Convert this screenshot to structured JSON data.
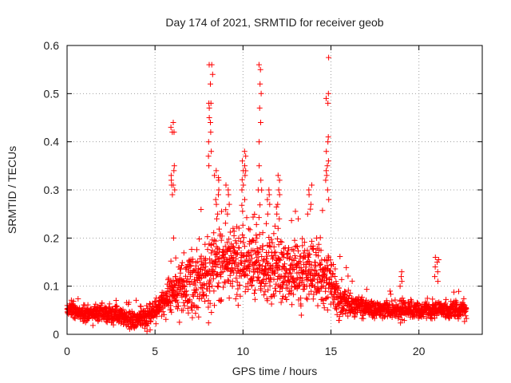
{
  "chart_data": {
    "type": "scatter",
    "title": "Day 174 of 2021, SRMTID for receiver geob",
    "xlabel": "GPS time / hours",
    "ylabel": "SRMTID / TECUs",
    "xlim": [
      0,
      23.6
    ],
    "ylim": [
      0,
      0.6
    ],
    "xticks": [
      0,
      5,
      10,
      15,
      20
    ],
    "yticks": [
      0,
      0.1,
      0.2,
      0.3,
      0.4,
      0.5,
      0.6
    ],
    "ytick_labels": [
      "0",
      "0.1",
      "0.2",
      "0.3",
      "0.4",
      "0.5",
      "0.6"
    ],
    "grid": true,
    "marker": "+",
    "color": "#ff0000",
    "time_range": [
      0,
      22.7
    ],
    "profile": [
      [
        0.0,
        0.055
      ],
      [
        1.0,
        0.04
      ],
      [
        2.0,
        0.045
      ],
      [
        3.0,
        0.04
      ],
      [
        3.8,
        0.03
      ],
      [
        4.5,
        0.035
      ],
      [
        5.0,
        0.05
      ],
      [
        5.5,
        0.07
      ],
      [
        6.0,
        0.09
      ],
      [
        7.0,
        0.1
      ],
      [
        8.0,
        0.13
      ],
      [
        9.0,
        0.16
      ],
      [
        10.0,
        0.15
      ],
      [
        11.0,
        0.14
      ],
      [
        12.0,
        0.13
      ],
      [
        13.0,
        0.12
      ],
      [
        14.0,
        0.13
      ],
      [
        15.0,
        0.11
      ],
      [
        15.5,
        0.07
      ],
      [
        16.5,
        0.06
      ],
      [
        18.0,
        0.05
      ],
      [
        20.0,
        0.05
      ],
      [
        22.7,
        0.05
      ]
    ],
    "spread_profile": [
      [
        0.0,
        0.01
      ],
      [
        5.0,
        0.015
      ],
      [
        6.0,
        0.03
      ],
      [
        7.0,
        0.045
      ],
      [
        9.0,
        0.05
      ],
      [
        13.0,
        0.045
      ],
      [
        14.5,
        0.05
      ],
      [
        15.5,
        0.025
      ],
      [
        17.0,
        0.012
      ],
      [
        22.7,
        0.012
      ]
    ],
    "n_points": 2300,
    "bursts": [
      {
        "time": 6.0,
        "values": [
          0.44,
          0.43,
          0.42,
          0.42,
          0.35,
          0.34,
          0.33,
          0.32,
          0.31,
          0.31,
          0.3,
          0.29,
          0.2
        ]
      },
      {
        "time": 8.15,
        "values": [
          0.56,
          0.56,
          0.54,
          0.52,
          0.48,
          0.48,
          0.47,
          0.45,
          0.44,
          0.42,
          0.4,
          0.38,
          0.37,
          0.35
        ]
      },
      {
        "time": 8.5,
        "values": [
          0.34,
          0.33,
          0.32,
          0.3,
          0.29,
          0.28,
          0.27,
          0.25,
          0.24
        ]
      },
      {
        "time": 9.1,
        "values": [
          0.31,
          0.3,
          0.29,
          0.27,
          0.25
        ]
      },
      {
        "time": 10.05,
        "values": [
          0.38,
          0.37,
          0.36,
          0.35,
          0.34,
          0.33,
          0.31,
          0.3,
          0.28
        ]
      },
      {
        "time": 10.95,
        "values": [
          0.56,
          0.55,
          0.52,
          0.5,
          0.47,
          0.44,
          0.4,
          0.35,
          0.32,
          0.3
        ]
      },
      {
        "time": 11.4,
        "values": [
          0.3,
          0.29,
          0.28,
          0.27,
          0.25,
          0.23
        ]
      },
      {
        "time": 12.0,
        "values": [
          0.33,
          0.32,
          0.3,
          0.29,
          0.27,
          0.25,
          0.24,
          0.22
        ]
      },
      {
        "time": 13.8,
        "values": [
          0.31,
          0.3,
          0.29,
          0.27,
          0.26,
          0.25
        ]
      },
      {
        "time": 14.75,
        "values": [
          0.575,
          0.5,
          0.49,
          0.48,
          0.41,
          0.4,
          0.38,
          0.36,
          0.35,
          0.34,
          0.33,
          0.32,
          0.3,
          0.28
        ]
      },
      {
        "time": 19.0,
        "values": [
          0.13,
          0.12,
          0.11,
          0.1
        ]
      },
      {
        "time": 21.0,
        "values": [
          0.16,
          0.155,
          0.15,
          0.14,
          0.13,
          0.12,
          0.11
        ]
      }
    ],
    "annotations": []
  }
}
